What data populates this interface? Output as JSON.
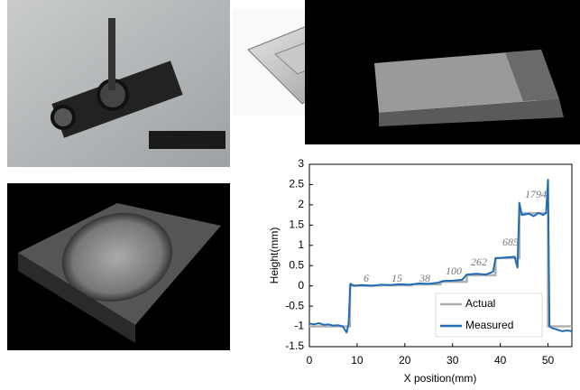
{
  "chart_data": {
    "type": "line",
    "x_label": "X position(mm)",
    "y_label": "Height(mm)",
    "xlim": [
      0,
      55
    ],
    "xticks": [
      0,
      10,
      20,
      30,
      40,
      50
    ],
    "ylim": [
      -1.5,
      3
    ],
    "yticks": [
      -1.5,
      -1,
      -0.5,
      0,
      0.5,
      1,
      1.5,
      2,
      2.5,
      3
    ],
    "legend": "lower right",
    "annotations": [
      "6",
      "15",
      "38",
      "100",
      "262",
      "685",
      "1794"
    ],
    "series": [
      {
        "name": "Actual",
        "color": "#b0b0b0",
        "x": [
          0,
          8.5,
          8.5,
          15,
          15,
          21.5,
          21.5,
          27.5,
          27.5,
          33,
          33,
          39,
          39,
          44,
          44,
          50,
          50,
          55
        ],
        "values": [
          -1,
          -1,
          0.006,
          0.006,
          0.015,
          0.015,
          0.038,
          0.038,
          0.1,
          0.1,
          0.262,
          0.262,
          0.685,
          0.685,
          1.794,
          1.794,
          -1,
          -1
        ]
      },
      {
        "name": "Measured",
        "color": "#1f6bb5",
        "x": [
          0,
          1,
          2,
          3,
          4,
          5,
          6,
          7,
          7.8,
          8.2,
          8.6,
          9.5,
          11,
          13,
          15,
          17,
          19,
          21,
          23,
          25,
          27,
          28,
          30,
          32,
          33,
          35,
          37,
          38.5,
          39,
          41,
          43,
          43.6,
          44,
          44.5,
          46,
          47,
          48,
          49,
          49.6,
          50,
          50.3,
          51,
          52,
          53,
          54,
          55
        ],
        "values": [
          -0.93,
          -0.95,
          -0.92,
          -0.96,
          -0.95,
          -0.98,
          -0.97,
          -1.0,
          -1.15,
          -0.95,
          0.05,
          0.0,
          0.02,
          0.0,
          0.03,
          0.02,
          0.04,
          0.03,
          0.06,
          0.05,
          0.08,
          0.12,
          0.13,
          0.15,
          0.28,
          0.3,
          0.28,
          0.35,
          0.68,
          0.7,
          0.72,
          0.45,
          2.05,
          1.75,
          1.78,
          1.72,
          1.8,
          1.75,
          1.8,
          2.62,
          -1.0,
          -1.05,
          -1.08,
          -1.12,
          -1.1,
          -1.12
        ]
      }
    ]
  }
}
